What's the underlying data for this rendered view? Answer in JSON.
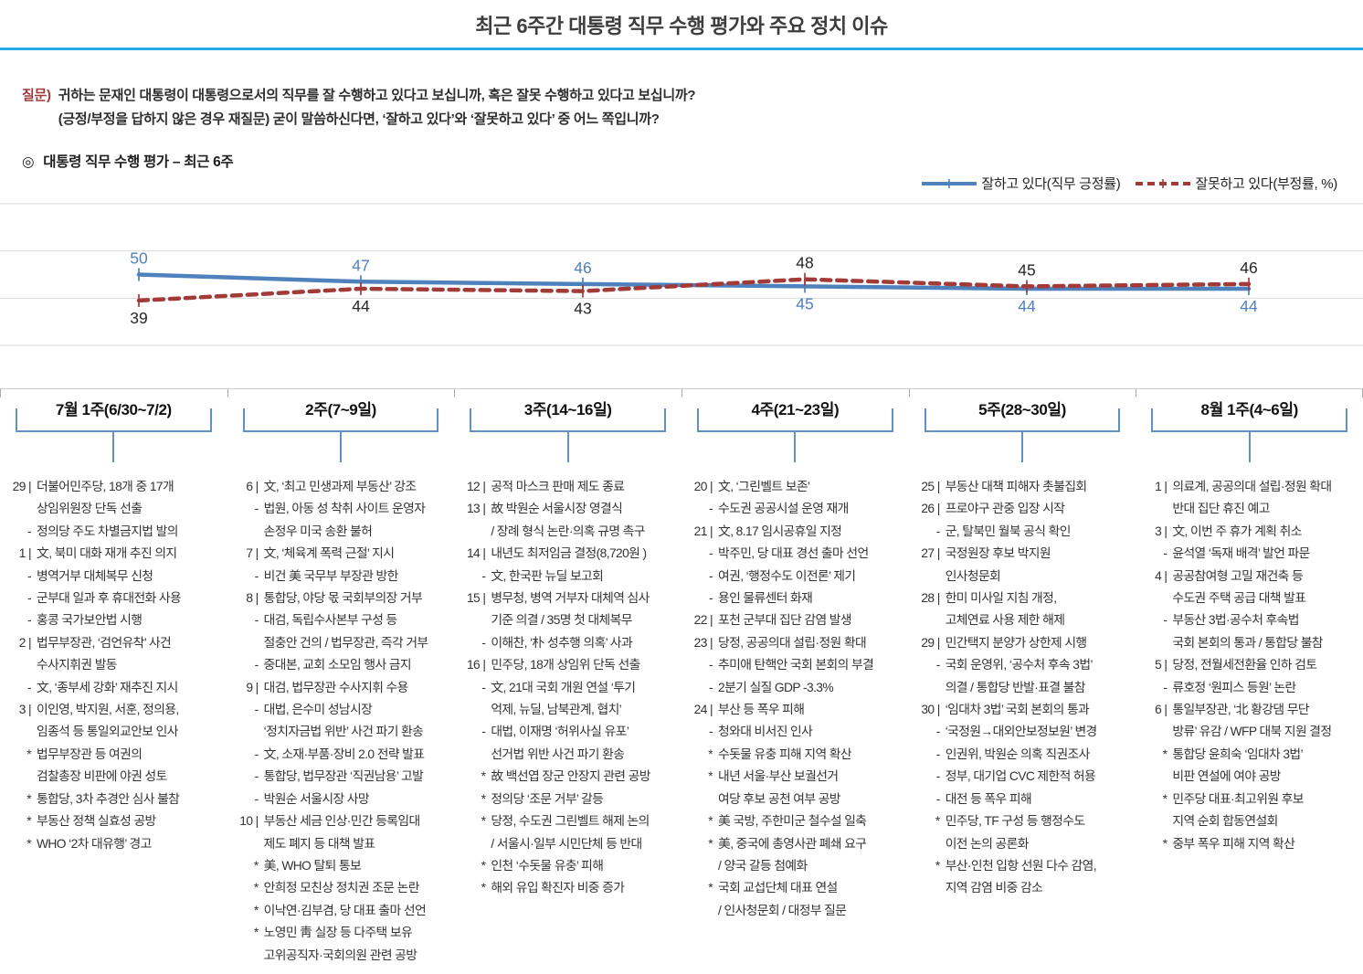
{
  "title": "최근 6주간 대통령 직무 수행 평가와 주요 정치 이슈",
  "question": {
    "prefix": "질문)",
    "line1": "귀하는 문재인 대통령이 대통령으로서의 직무를 잘 수행하고 있다고 보십니까, 혹은 잘못 수행하고 있다고 보십니까?",
    "line2": "(긍정/부정을 답하지 않은 경우 재질문) 굳이 말씀하신다면, ‘잘하고 있다’와 ‘잘못하고 있다’ 중 어느 쪽입니까?"
  },
  "section_heading": {
    "marker": "◎",
    "text": "대통령 직무 수행 평가 – 최근 6주"
  },
  "colors": {
    "approval_line": "#4f81bd",
    "disapproval_line": "#a23b38",
    "approval_label": "#4f81bd",
    "disapproval_label": "#262626",
    "gridline": "#d9d9d9",
    "title_rule": "#29a9e1",
    "bracket": "#6290c3"
  },
  "chart_data": {
    "type": "line",
    "categories": [
      "7월 1주(6/30~7/2)",
      "2주(7~9일)",
      "3주(14~16일)",
      "4주(21~23일)",
      "5주(28~30일)",
      "8월 1주(4~6일)"
    ],
    "series": [
      {
        "name": "잘하고 있다(직무 긍정률)",
        "values": [
          50,
          47,
          46,
          45,
          44,
          44
        ],
        "color": "#4f81bd",
        "style": "solid"
      },
      {
        "name": "잘못하고 있다(부정률, %)",
        "values": [
          39,
          44,
          43,
          48,
          45,
          46
        ],
        "color": "#a23b38",
        "style": "dashed"
      }
    ],
    "ylim": [
      20,
      80
    ],
    "gridlines": [
      20,
      40,
      60,
      80
    ],
    "grid": true,
    "legend_position": "top-right",
    "marker": "plus"
  },
  "columns": [
    {
      "week_label": "7월 1주(6/30~7/2)",
      "items": [
        {
          "m": "29 |",
          "lines": [
            "더불어민주당, 18개 중 17개",
            "상임위원장 단독 선출"
          ]
        },
        {
          "m": "-",
          "lines": [
            "정의당 주도 차별금지법 발의"
          ]
        },
        {
          "m": "1 |",
          "lines": [
            "文, 북미 대화 재개 추진 의지"
          ]
        },
        {
          "m": "-",
          "lines": [
            "병역거부 대체복무 신청"
          ]
        },
        {
          "m": "-",
          "lines": [
            "군부대 일과 후 휴대전화 사용"
          ]
        },
        {
          "m": "-",
          "lines": [
            "홍콩 국가보안법 시행"
          ]
        },
        {
          "m": "2 |",
          "lines": [
            "법무부장관, ‘검언유착’ 사건",
            "수사지휘권 발동"
          ]
        },
        {
          "m": "-",
          "lines": [
            "文, ‘종부세 강화’ 재추진 지시"
          ]
        },
        {
          "m": "3 |",
          "lines": [
            "이인영, 박지원, 서훈, 정의용,",
            "임종석 등 통일외교안보 인사"
          ]
        },
        {
          "m": "*",
          "lines": [
            "법무부장관 등 여권의",
            "검찰총장 비판에 야권 성토"
          ]
        },
        {
          "m": "*",
          "lines": [
            "통합당, 3차 추경안 심사 불참"
          ]
        },
        {
          "m": "*",
          "lines": [
            "부동산 정책 실효성 공방"
          ]
        },
        {
          "m": "*",
          "lines": [
            "WHO ‘2차 대유행’ 경고"
          ]
        }
      ]
    },
    {
      "week_label": "2주(7~9일)",
      "items": [
        {
          "m": "6 |",
          "lines": [
            "文, ‘최고 민생과제 부동산’ 강조"
          ]
        },
        {
          "m": "-",
          "lines": [
            "법원, 아동 성 착취 사이트 운영자",
            "손정우 미국 송환 불허"
          ]
        },
        {
          "m": "7 |",
          "lines": [
            "文, ‘체육계 폭력 근절’ 지시"
          ]
        },
        {
          "m": "-",
          "lines": [
            "비건 美 국무부 부장관 방한"
          ]
        },
        {
          "m": "8 |",
          "lines": [
            "통합당, 야당 몫 국회부의장 거부"
          ]
        },
        {
          "m": "-",
          "lines": [
            "대검, 독립수사본부 구성 등",
            "절충안 건의 / 법무장관, 즉각 거부"
          ]
        },
        {
          "m": "-",
          "lines": [
            "중대본, 교회 소모임 행사 금지"
          ]
        },
        {
          "m": "9 |",
          "lines": [
            "대검, 법무장관 수사지휘 수용"
          ]
        },
        {
          "m": "-",
          "lines": [
            "대법, 은수미 성남시장",
            "‘정치자금법 위반’ 사건 파기 환송"
          ]
        },
        {
          "m": "-",
          "lines": [
            "文, 소재·부품·장비 2.0 전략 발표"
          ]
        },
        {
          "m": "-",
          "lines": [
            "통합당, 법무장관 ‘직권남용’ 고발"
          ]
        },
        {
          "m": "-",
          "lines": [
            "박원순 서울시장 사망"
          ]
        },
        {
          "m": "10 |",
          "lines": [
            "부동산 세금 인상·민간 등록임대",
            "제도 폐지 등 대책 발표"
          ]
        },
        {
          "m": "*",
          "lines": [
            "美, WHO 탈퇴 통보"
          ]
        },
        {
          "m": "*",
          "lines": [
            "안희정 모친상 정치권 조문 논란"
          ]
        },
        {
          "m": "*",
          "lines": [
            "이낙연·김부겸, 당 대표 출마 선언"
          ]
        },
        {
          "m": "*",
          "lines": [
            "노영민 靑 실장 등 다주택 보유",
            "고위공직자·국회의원 관련 공방"
          ]
        }
      ]
    },
    {
      "week_label": "3주(14~16일)",
      "items": [
        {
          "m": "12 |",
          "lines": [
            "공적 마스크 판매 제도 종료"
          ]
        },
        {
          "m": "13 |",
          "lines": [
            "故 박원순 서울시장 영결식",
            "/ 장례 형식 논란·의혹 규명 촉구"
          ]
        },
        {
          "m": "14 |",
          "lines": [
            "내년도 최저임금 결정(8,720원 )"
          ]
        },
        {
          "m": "-",
          "lines": [
            "文, 한국판 뉴딜 보고회"
          ]
        },
        {
          "m": "15 |",
          "lines": [
            "병무청, 병역 거부자 대체역 심사",
            "기준 의결 / 35명 첫 대체복무"
          ]
        },
        {
          "m": "-",
          "lines": [
            "이해찬, ‘朴 성추행 의혹’ 사과"
          ]
        },
        {
          "m": "16 |",
          "lines": [
            "민주당, 18개 상임위 단독 선출"
          ]
        },
        {
          "m": "-",
          "lines": [
            "文, 21대 국회 개원 연설 ‘투기",
            "억제, 뉴딜, 남북관계, 협치’"
          ]
        },
        {
          "m": "-",
          "lines": [
            "대법, 이재명 ‘허위사실 유포’",
            "선거법 위반 사건 파기 환송"
          ]
        },
        {
          "m": "*",
          "lines": [
            "故 백선엽 장군 안장지 관련 공방"
          ]
        },
        {
          "m": "*",
          "lines": [
            "정의당 ‘조문 거부’ 갈등"
          ]
        },
        {
          "m": "*",
          "lines": [
            "당정, 수도권 그린벨트 해제 논의",
            "/ 서울시·일부 시민단체 등 반대"
          ]
        },
        {
          "m": "*",
          "lines": [
            "인천 ‘수돗물 유충’ 피해"
          ]
        },
        {
          "m": "*",
          "lines": [
            "해외 유입 확진자 비중 증가"
          ]
        }
      ]
    },
    {
      "week_label": "4주(21~23일)",
      "items": [
        {
          "m": "20 |",
          "lines": [
            "文, ‘그린벨트 보존’"
          ]
        },
        {
          "m": "-",
          "lines": [
            "수도권 공공시설 운영 재개"
          ]
        },
        {
          "m": "21 |",
          "lines": [
            "文, 8.17 임시공휴일 지정"
          ]
        },
        {
          "m": "-",
          "lines": [
            "박주민, 당 대표 경선 출마 선언"
          ]
        },
        {
          "m": "-",
          "lines": [
            "여권, ‘행정수도 이전론’ 제기"
          ]
        },
        {
          "m": "-",
          "lines": [
            "용인 물류센터 화재"
          ]
        },
        {
          "m": "22 |",
          "lines": [
            "포천 군부대 집단 감염 발생"
          ]
        },
        {
          "m": "23 |",
          "lines": [
            "당정, 공공의대 설립·정원 확대"
          ]
        },
        {
          "m": "-",
          "lines": [
            "추미애 탄핵안 국회 본회의 부결"
          ]
        },
        {
          "m": "-",
          "lines": [
            "2분기 실질 GDP -3.3%"
          ]
        },
        {
          "m": "24 |",
          "lines": [
            "부산 등 폭우 피해"
          ]
        },
        {
          "m": "-",
          "lines": [
            "청와대 비서진 인사"
          ]
        },
        {
          "m": "*",
          "lines": [
            "수돗물 유충 피해 지역 확산"
          ]
        },
        {
          "m": "*",
          "lines": [
            "내년 서울·부산 보궐선거",
            "여당 후보 공천 여부 공방"
          ]
        },
        {
          "m": "*",
          "lines": [
            "美 국방, 주한미군 철수설 일축"
          ]
        },
        {
          "m": "*",
          "lines": [
            "美, 중국에 총영사관 폐쇄 요구",
            "/ 양국 갈등 첨예화"
          ]
        },
        {
          "m": "*",
          "lines": [
            "국회 교섭단체 대표 연설",
            "/ 인사청문회 / 대정부 질문"
          ]
        }
      ]
    },
    {
      "week_label": "5주(28~30일)",
      "items": [
        {
          "m": "25 |",
          "lines": [
            "부동산 대책 피해자 촛불집회"
          ]
        },
        {
          "m": "26 |",
          "lines": [
            "프로야구 관중 입장 시작"
          ]
        },
        {
          "m": "-",
          "lines": [
            "군, 탈북민 월북 공식 확인"
          ]
        },
        {
          "m": "27 |",
          "lines": [
            "국정원장 후보 박지원",
            "인사청문회"
          ]
        },
        {
          "m": "28 |",
          "lines": [
            "한미 미사일 지침 개정,",
            "고체연료 사용 제한 해제"
          ]
        },
        {
          "m": "29 |",
          "lines": [
            "민간택지 분양가 상한제 시행"
          ]
        },
        {
          "m": "-",
          "lines": [
            "국회 운영위, ‘공수처 후속 3법’",
            "의결 / 통합당 반발·표결 불참"
          ]
        },
        {
          "m": "30 |",
          "lines": [
            "‘임대차 3법’ 국회 본회의 통과"
          ]
        },
        {
          "m": "-",
          "lines": [
            "‘국정원→대외안보정보원’ 변경"
          ]
        },
        {
          "m": "-",
          "lines": [
            "인권위, 박원순 의혹 직권조사"
          ]
        },
        {
          "m": "-",
          "lines": [
            "정부, 대기업 CVC 제한적 허용"
          ]
        },
        {
          "m": "-",
          "lines": [
            "대전 등 폭우 피해"
          ]
        },
        {
          "m": "*",
          "lines": [
            "민주당, TF 구성 등 행정수도",
            "이전 논의 공론화"
          ]
        },
        {
          "m": "*",
          "lines": [
            "부산·인천 입항 선원 다수 감염,",
            "지역 감염 비중 감소"
          ]
        }
      ]
    },
    {
      "week_label": "8월 1주(4~6일)",
      "items": [
        {
          "m": "1 |",
          "lines": [
            "의료계, 공공의대 설립·정원 확대",
            "반대 집단 휴진 예고"
          ]
        },
        {
          "m": "3 |",
          "lines": [
            "文, 이번 주 휴가 계획 취소"
          ]
        },
        {
          "m": "-",
          "lines": [
            "윤석열 ‘독재 배격’ 발언 파문"
          ]
        },
        {
          "m": "4 |",
          "lines": [
            "공공참여형 고밀 재건축 등",
            "수도권 주택 공급 대책 발표"
          ]
        },
        {
          "m": "-",
          "lines": [
            "부동산 3법·공수처 후속법",
            "국회 본회의 통과 / 통합당 불참"
          ]
        },
        {
          "m": "5 |",
          "lines": [
            "당정, 전월세전환율 인하 검토"
          ]
        },
        {
          "m": "-",
          "lines": [
            "류호정 ‘원피스 등원’ 논란"
          ]
        },
        {
          "m": "6 |",
          "lines": [
            "통일부장관, ‘北 황강댐 무단",
            "방류’ 유감 / WFP 대북 지원 결정"
          ]
        },
        {
          "m": "*",
          "lines": [
            "통합당 윤희숙 ‘임대차 3법’",
            "비판 연설에 여야 공방"
          ]
        },
        {
          "m": "*",
          "lines": [
            "민주당 대표·최고위원 후보",
            "지역 순회 합동연설회"
          ]
        },
        {
          "m": "*",
          "lines": [
            "중부 폭우 피해 지역 확산"
          ]
        }
      ]
    }
  ]
}
